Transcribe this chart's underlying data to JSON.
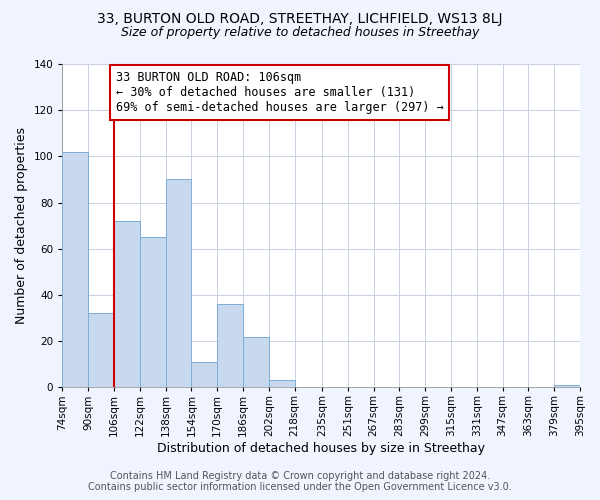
{
  "title": "33, BURTON OLD ROAD, STREETHAY, LICHFIELD, WS13 8LJ",
  "subtitle": "Size of property relative to detached houses in Streethay",
  "xlabel": "Distribution of detached houses by size in Streethay",
  "ylabel": "Number of detached properties",
  "footer_line1": "Contains HM Land Registry data © Crown copyright and database right 2024.",
  "footer_line2": "Contains public sector information licensed under the Open Government Licence v3.0.",
  "bar_edges": [
    74,
    90,
    106,
    122,
    138,
    154,
    170,
    186,
    202,
    218,
    235,
    251,
    267,
    283,
    299,
    315,
    331,
    347,
    363,
    379,
    395
  ],
  "bar_heights": [
    102,
    32,
    72,
    65,
    90,
    11,
    36,
    22,
    3,
    0,
    0,
    0,
    0,
    0,
    0,
    0,
    0,
    0,
    0,
    1
  ],
  "bar_color": "#c8d8ee",
  "bar_edge_color": "#7bafd4",
  "reference_line_x": 106,
  "reference_line_color": "#cc0000",
  "annotation_text": "33 BURTON OLD ROAD: 106sqm\n← 30% of detached houses are smaller (131)\n69% of semi-detached houses are larger (297) →",
  "annotation_box_color": "#cc0000",
  "ylim": [
    0,
    140
  ],
  "yticks": [
    0,
    20,
    40,
    60,
    80,
    100,
    120,
    140
  ],
  "tick_labels": [
    "74sqm",
    "90sqm",
    "106sqm",
    "122sqm",
    "138sqm",
    "154sqm",
    "170sqm",
    "186sqm",
    "202sqm",
    "218sqm",
    "235sqm",
    "251sqm",
    "267sqm",
    "283sqm",
    "299sqm",
    "315sqm",
    "331sqm",
    "347sqm",
    "363sqm",
    "379sqm",
    "395sqm"
  ],
  "plot_bg_color": "#ffffff",
  "fig_bg_color": "#f0f4ff",
  "grid_color": "#c8d0e0",
  "title_fontsize": 10,
  "subtitle_fontsize": 9,
  "axis_label_fontsize": 9,
  "tick_fontsize": 7.5,
  "annotation_fontsize": 8.5,
  "footer_fontsize": 7
}
